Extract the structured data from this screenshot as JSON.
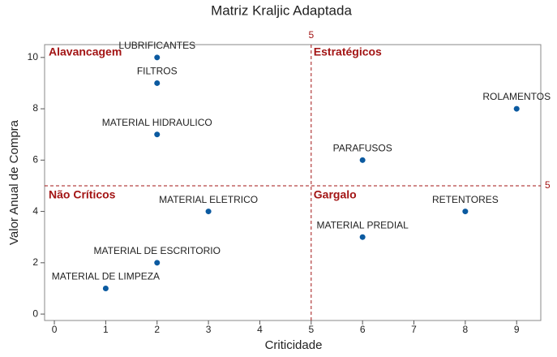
{
  "chart_data": {
    "type": "scatter",
    "title": "Matriz Kraljic Adaptada",
    "x_label": "Criticidade",
    "y_label": "Valor Anual de Compra",
    "x": [
      2,
      2,
      2,
      6,
      9,
      3,
      8,
      6,
      2,
      1
    ],
    "values": [
      10,
      9,
      7,
      6,
      8,
      4,
      4,
      3,
      2,
      1
    ],
    "point_labels": [
      "LUBRIFICANTES",
      "FILTROS",
      "MATERIAL HIDRAULICO",
      "PARAFUSOS",
      "ROLAMENTOS",
      "MATERIAL ELETRICO",
      "RETENTORES",
      "MATERIAL PREDIAL",
      "MATERIAL DE ESCRITORIO",
      "MATERIAL DE LIMPEZA"
    ],
    "color": "#0b5aa0",
    "xlim": [
      -0.19,
      9.47
    ],
    "ylim": [
      -0.25,
      10.5
    ],
    "xticks": [
      0,
      1,
      2,
      3,
      4,
      5,
      6,
      7,
      8,
      9
    ],
    "yticks": [
      0,
      2,
      4,
      6,
      8,
      10
    ],
    "reference_lines": [
      {
        "axis": "x",
        "value": 5
      },
      {
        "axis": "y",
        "value": 5
      }
    ],
    "reference_color": "#a31515",
    "quadrant_labels": [
      "Alavancagem",
      "Estratégicos",
      "Não Críticos",
      "Gargalo"
    ]
  }
}
